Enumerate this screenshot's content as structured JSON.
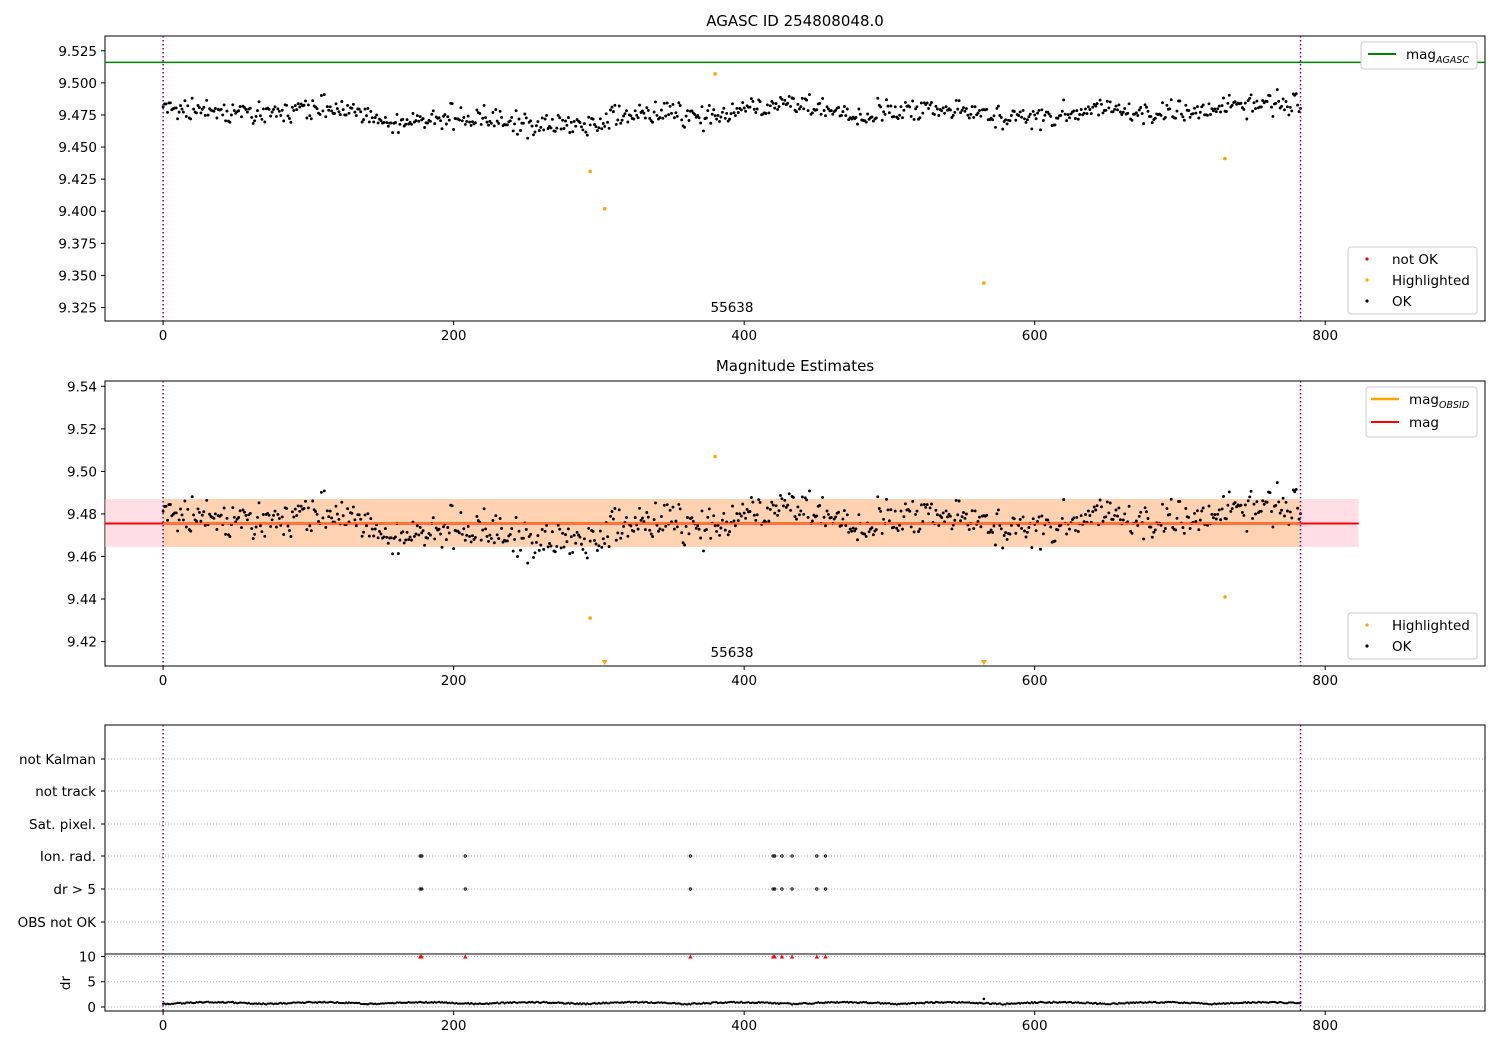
{
  "chart_data": [
    {
      "type": "scatter",
      "title": "AGASC ID 254808048.0",
      "xlim": [
        -40,
        910
      ],
      "ylim": [
        9.3145,
        9.5365
      ],
      "xticks": [
        0,
        200,
        400,
        600,
        800
      ],
      "yticks": [
        9.325,
        9.35,
        9.375,
        9.4,
        9.425,
        9.45,
        9.475,
        9.5,
        9.525
      ],
      "vlines": [
        0,
        783
      ],
      "hline": {
        "value": 9.516,
        "color": "#008000",
        "label": "mag",
        "sub": "AGASC"
      },
      "legend_upper": "top-right",
      "legend_lower": "bottom-right",
      "legend": [
        {
          "label": "not OK",
          "color": "#ff0000"
        },
        {
          "label": "Highlighted",
          "color": "#ffa500"
        },
        {
          "label": "OK",
          "color": "#000000"
        }
      ],
      "annotation": {
        "text": "55638",
        "x": 392,
        "y": 9.3255
      },
      "ok_baseline": 9.476,
      "highlighted": [
        {
          "x": 380,
          "y": 9.507
        },
        {
          "x": 294,
          "y": 9.431
        },
        {
          "x": 304,
          "y": 9.402
        },
        {
          "x": 565,
          "y": 9.344
        },
        {
          "x": 731,
          "y": 9.441
        }
      ]
    },
    {
      "type": "scatter",
      "title": "Magnitude Estimates",
      "xlim": [
        -40,
        910
      ],
      "ylim": [
        9.4085,
        9.5425
      ],
      "xticks": [
        0,
        200,
        400,
        600,
        800
      ],
      "yticks": [
        9.42,
        9.44,
        9.46,
        9.48,
        9.5,
        9.52,
        9.54
      ],
      "vlines": [
        0,
        783
      ],
      "band": {
        "x0": -40,
        "x1": 823,
        "y0": 9.4645,
        "y1": 9.487
      },
      "mag_line": {
        "value": 9.4755,
        "color": "#ff0000",
        "label": "mag"
      },
      "obsid_line": {
        "color": "#ffa500",
        "label": "mag",
        "sub": "OBSID"
      },
      "legend": [
        {
          "label": "Highlighted",
          "color": "#ffa500"
        },
        {
          "label": "OK",
          "color": "#000000"
        }
      ],
      "annotation": {
        "text": "55638",
        "x": 392,
        "y": 9.412
      },
      "highlighted": [
        {
          "x": 380,
          "y": 9.507
        },
        {
          "x": 294,
          "y": 9.431
        },
        {
          "x": 731,
          "y": 9.441
        }
      ],
      "offscale_low": [
        304,
        565
      ]
    },
    {
      "type": "scatter",
      "title": "",
      "xlim": [
        -40,
        910
      ],
      "xticks": [
        0,
        200,
        400,
        600,
        800
      ],
      "vlines": [
        0,
        783
      ],
      "flag_rows": [
        "not Kalman",
        "not track",
        "Sat. pixel.",
        "Ion. rad.",
        "dr > 5",
        "OBS not OK"
      ],
      "flag_points": {
        "Ion. rad.": [
          177,
          178,
          208,
          363,
          420,
          421,
          426,
          433,
          450,
          456
        ],
        "dr > 5": [
          177,
          178,
          208,
          363,
          420,
          421,
          426,
          433,
          450,
          456
        ]
      },
      "dr": {
        "ylabel": "dr",
        "yticks": [
          0,
          5,
          10
        ],
        "ylim": [
          -0.8,
          10.5
        ],
        "marker_at_10": [
          177,
          178,
          208,
          363,
          420,
          421,
          426,
          433,
          450,
          456
        ],
        "spike": {
          "x": 565,
          "y": 1.6
        }
      }
    }
  ]
}
